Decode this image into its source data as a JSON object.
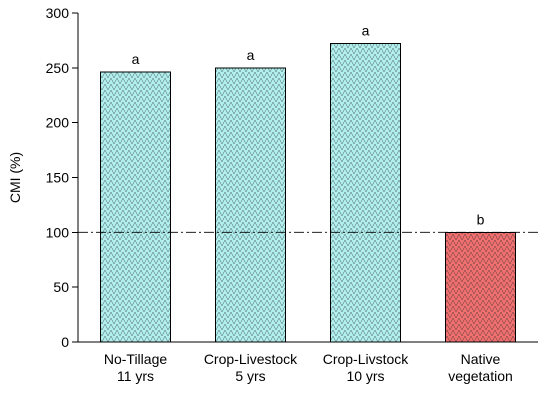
{
  "chart_data": {
    "type": "bar",
    "title": "",
    "xlabel": "",
    "ylabel": "CMI (%)",
    "ylim": [
      0,
      300
    ],
    "yticks": [
      0,
      50,
      100,
      150,
      200,
      250,
      300
    ],
    "grid": false,
    "categories": [
      [
        "No-Tillage",
        "11 yrs"
      ],
      [
        "Crop-Livestock",
        "5 yrs"
      ],
      [
        "Crop-Livstock",
        "10 yrs"
      ],
      [
        "Native",
        "vegetation"
      ]
    ],
    "values": [
      246,
      250,
      272,
      100
    ],
    "significance_letters": [
      "a",
      "a",
      "a",
      "b"
    ],
    "bar_colors": [
      "#b2f0f0",
      "#b2f0f0",
      "#b2f0f0",
      "#f07070"
    ],
    "reference_line": 100
  }
}
